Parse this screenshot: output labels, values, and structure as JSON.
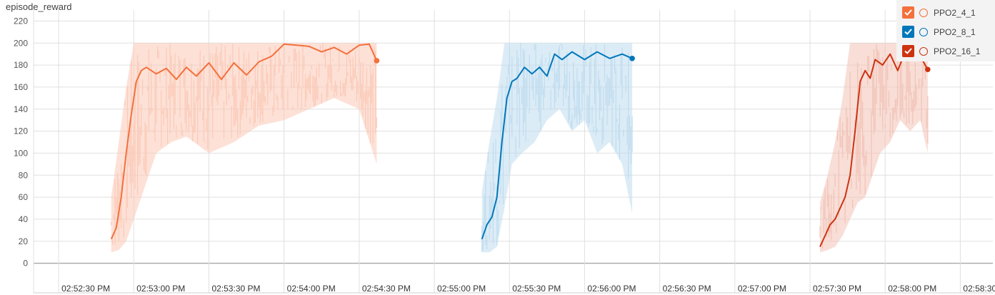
{
  "chart_data": {
    "type": "line",
    "title": "episode_reward",
    "xlabel": "",
    "ylabel": "",
    "ylim": [
      -10,
      230
    ],
    "yticks": [
      0,
      20,
      40,
      60,
      80,
      100,
      120,
      140,
      160,
      180,
      200,
      220
    ],
    "xlim": [
      "14:52:20",
      "14:58:43"
    ],
    "xticks": [
      {
        "t": "14:52:30",
        "label": "02:52:30 PM"
      },
      {
        "t": "14:53:00",
        "label": "02:53:00 PM"
      },
      {
        "t": "14:53:30",
        "label": "02:53:30 PM"
      },
      {
        "t": "14:54:00",
        "label": "02:54:00 PM"
      },
      {
        "t": "14:54:30",
        "label": "02:54:30 PM"
      },
      {
        "t": "14:55:00",
        "label": "02:55:00 PM"
      },
      {
        "t": "14:55:30",
        "label": "02:55:30 PM"
      },
      {
        "t": "14:56:00",
        "label": "02:56:00 PM"
      },
      {
        "t": "14:56:30",
        "label": "02:56:30 PM"
      },
      {
        "t": "14:57:00",
        "label": "02:57:00 PM"
      },
      {
        "t": "14:57:30",
        "label": "02:57:30 PM"
      },
      {
        "t": "14:58:00",
        "label": "02:58:00 PM"
      },
      {
        "t": "14:58:30",
        "label": "02:58:30 PM"
      }
    ],
    "grid": true,
    "legend_position": "top-right",
    "series": [
      {
        "name": "PPO2_4_1",
        "color": "#f4703c",
        "light_color": "#fbc9b6",
        "checked": true,
        "raw_band": {
          "x": [
            "14:52:51",
            "14:52:54",
            "14:52:57",
            "14:53:00",
            "14:53:03",
            "14:53:06",
            "14:53:09",
            "14:53:15",
            "14:53:21",
            "14:53:30",
            "14:53:40",
            "14:53:50",
            "14:54:00",
            "14:54:10",
            "14:54:20",
            "14:54:30",
            "14:54:37"
          ],
          "low": [
            10,
            12,
            20,
            40,
            60,
            80,
            100,
            110,
            115,
            100,
            110,
            125,
            130,
            140,
            150,
            140,
            90
          ],
          "high": [
            60,
            110,
            160,
            200,
            200,
            200,
            200,
            200,
            200,
            200,
            200,
            200,
            200,
            200,
            200,
            200,
            200
          ]
        },
        "smoothed": {
          "x": [
            "14:52:51",
            "14:52:53",
            "14:52:55",
            "14:52:57",
            "14:52:59",
            "14:53:01",
            "14:53:03",
            "14:53:05",
            "14:53:09",
            "14:53:13",
            "14:53:17",
            "14:53:21",
            "14:53:25",
            "14:53:30",
            "14:53:35",
            "14:53:40",
            "14:53:45",
            "14:53:50",
            "14:53:55",
            "14:54:00",
            "14:54:05",
            "14:54:10",
            "14:54:15",
            "14:54:20",
            "14:54:25",
            "14:54:30",
            "14:54:34",
            "14:54:37"
          ],
          "y": [
            22,
            32,
            60,
            100,
            135,
            165,
            175,
            178,
            172,
            177,
            167,
            178,
            170,
            182,
            167,
            182,
            171,
            183,
            188,
            199,
            198,
            197,
            192,
            196,
            190,
            198,
            199,
            184
          ]
        }
      },
      {
        "name": "PPO2_8_1",
        "color": "#0077bb",
        "light_color": "#bfdcef",
        "checked": true,
        "raw_band": {
          "x": [
            "14:55:19",
            "14:55:22",
            "14:55:25",
            "14:55:28",
            "14:55:31",
            "14:55:35",
            "14:55:40",
            "14:55:45",
            "14:55:50",
            "14:55:55",
            "14:56:00",
            "14:56:05",
            "14:56:10",
            "14:56:15",
            "14:56:19"
          ],
          "low": [
            10,
            10,
            15,
            50,
            90,
            100,
            110,
            130,
            140,
            120,
            130,
            100,
            110,
            90,
            45
          ],
          "high": [
            65,
            110,
            150,
            200,
            200,
            200,
            200,
            200,
            200,
            200,
            200,
            200,
            200,
            200,
            200
          ]
        },
        "smoothed": {
          "x": [
            "14:55:19",
            "14:55:21",
            "14:55:23",
            "14:55:25",
            "14:55:27",
            "14:55:29",
            "14:55:31",
            "14:55:33",
            "14:55:36",
            "14:55:39",
            "14:55:42",
            "14:55:45",
            "14:55:48",
            "14:55:51",
            "14:55:55",
            "14:56:00",
            "14:56:05",
            "14:56:10",
            "14:56:15",
            "14:56:19"
          ],
          "y": [
            22,
            35,
            42,
            60,
            110,
            150,
            165,
            168,
            178,
            172,
            178,
            170,
            190,
            185,
            192,
            185,
            192,
            186,
            190,
            186
          ]
        }
      },
      {
        "name": "PPO2_16_1",
        "color": "#cc3311",
        "light_color": "#f2c2b6",
        "checked": true,
        "raw_band": {
          "x": [
            "14:57:34",
            "14:57:37",
            "14:57:40",
            "14:57:43",
            "14:57:46",
            "14:57:49",
            "14:57:52",
            "14:57:55",
            "14:57:58",
            "14:58:02",
            "14:58:06",
            "14:58:10",
            "14:58:14",
            "14:58:17"
          ],
          "low": [
            10,
            12,
            15,
            25,
            40,
            55,
            60,
            80,
            100,
            110,
            130,
            120,
            130,
            100
          ],
          "high": [
            55,
            80,
            110,
            150,
            200,
            200,
            200,
            200,
            200,
            200,
            200,
            200,
            200,
            200
          ]
        },
        "smoothed": {
          "x": [
            "14:57:34",
            "14:57:36",
            "14:57:38",
            "14:57:40",
            "14:57:42",
            "14:57:44",
            "14:57:46",
            "14:57:48",
            "14:57:50",
            "14:57:52",
            "14:57:54",
            "14:57:56",
            "14:57:59",
            "14:58:02",
            "14:58:05",
            "14:58:08",
            "14:58:11",
            "14:58:14",
            "14:58:17"
          ],
          "y": [
            15,
            25,
            35,
            40,
            50,
            60,
            80,
            120,
            165,
            175,
            168,
            185,
            180,
            190,
            175,
            192,
            185,
            188,
            176
          ]
        }
      }
    ]
  }
}
